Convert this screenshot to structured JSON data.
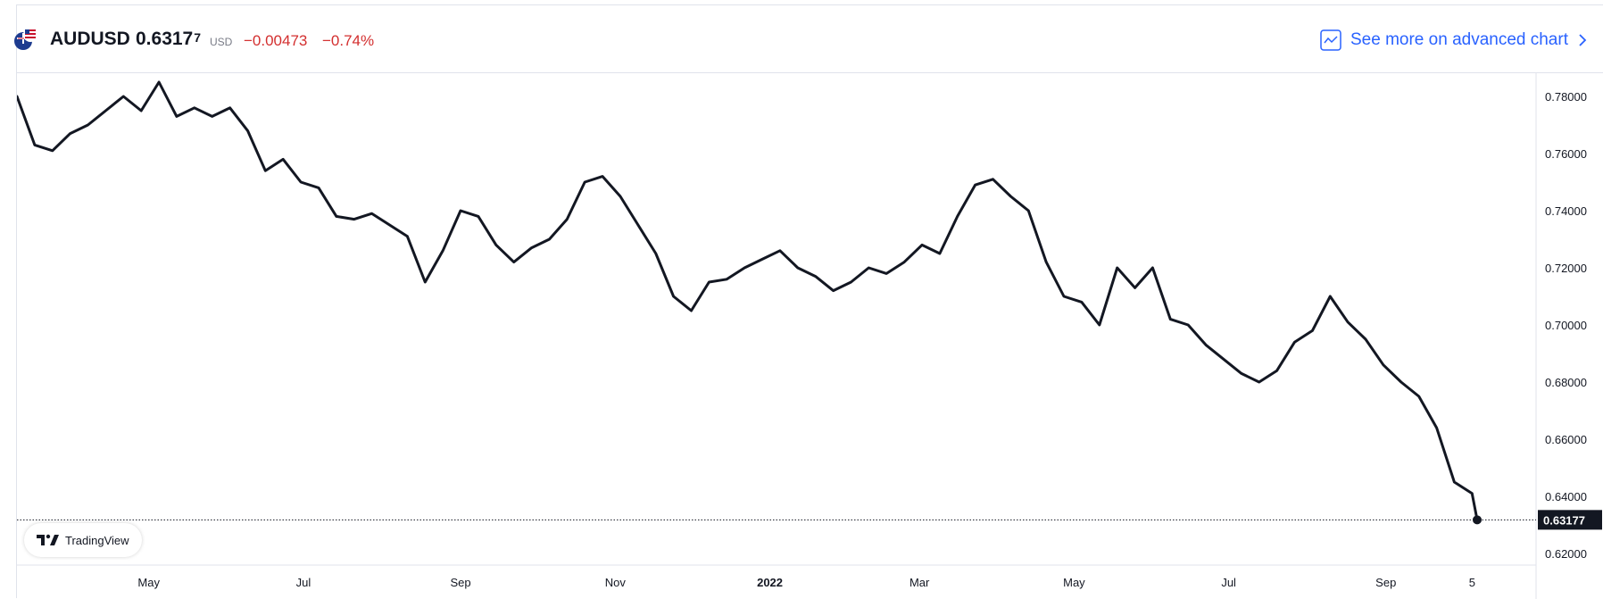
{
  "header": {
    "symbol": "AUDUSD",
    "price_main": "0.6317",
    "price_sup": "7",
    "currency": "USD",
    "change": "−0.00473",
    "change_pct": "−0.74%",
    "advanced_label": "See more on advanced chart"
  },
  "badge": {
    "label": "TradingView"
  },
  "colors": {
    "line": "#131722",
    "negative": "#d32f2f",
    "link": "#2962ff",
    "axis_text": "#131722"
  },
  "chart_data": {
    "type": "line",
    "title": "",
    "xlabel": "",
    "ylabel": "",
    "ylim": [
      0.62,
      0.79
    ],
    "grid": false,
    "y_ticks": [
      "0.62000",
      "0.64000",
      "0.66000",
      "0.68000",
      "0.70000",
      "0.72000",
      "0.74000",
      "0.76000",
      "0.78000"
    ],
    "x_ticks": [
      {
        "label": "May",
        "date": "2021-05-01"
      },
      {
        "label": "Jul",
        "date": "2021-07-01"
      },
      {
        "label": "Sep",
        "date": "2021-09-01"
      },
      {
        "label": "Nov",
        "date": "2021-11-01"
      },
      {
        "label": "2022",
        "date": "2022-01-01"
      },
      {
        "label": "Mar",
        "date": "2022-03-01"
      },
      {
        "label": "May",
        "date": "2022-05-01"
      },
      {
        "label": "Jul",
        "date": "2022-07-01"
      },
      {
        "label": "Sep",
        "date": "2022-09-01"
      },
      {
        "label": "5",
        "date": "2022-10-05"
      }
    ],
    "last_value": 0.63177,
    "last_value_label": "0.63177",
    "series": [
      {
        "name": "",
        "x": [
          "2021-03-10",
          "2021-03-17",
          "2021-03-24",
          "2021-03-31",
          "2021-04-07",
          "2021-04-14",
          "2021-04-21",
          "2021-04-28",
          "2021-05-05",
          "2021-05-12",
          "2021-05-19",
          "2021-05-26",
          "2021-06-02",
          "2021-06-09",
          "2021-06-16",
          "2021-06-23",
          "2021-06-30",
          "2021-07-07",
          "2021-07-14",
          "2021-07-21",
          "2021-07-28",
          "2021-08-04",
          "2021-08-11",
          "2021-08-18",
          "2021-08-25",
          "2021-09-01",
          "2021-09-08",
          "2021-09-15",
          "2021-09-22",
          "2021-09-29",
          "2021-10-06",
          "2021-10-13",
          "2021-10-20",
          "2021-10-27",
          "2021-11-03",
          "2021-11-10",
          "2021-11-17",
          "2021-11-24",
          "2021-12-01",
          "2021-12-08",
          "2021-12-15",
          "2021-12-22",
          "2021-12-29",
          "2022-01-05",
          "2022-01-12",
          "2022-01-19",
          "2022-01-26",
          "2022-02-02",
          "2022-02-09",
          "2022-02-16",
          "2022-02-23",
          "2022-03-02",
          "2022-03-09",
          "2022-03-16",
          "2022-03-23",
          "2022-03-30",
          "2022-04-06",
          "2022-04-13",
          "2022-04-20",
          "2022-04-27",
          "2022-05-04",
          "2022-05-11",
          "2022-05-18",
          "2022-05-25",
          "2022-06-01",
          "2022-06-08",
          "2022-06-15",
          "2022-06-22",
          "2022-06-29",
          "2022-07-06",
          "2022-07-13",
          "2022-07-20",
          "2022-07-27",
          "2022-08-03",
          "2022-08-10",
          "2022-08-17",
          "2022-08-24",
          "2022-08-31",
          "2022-09-07",
          "2022-09-14",
          "2022-09-21",
          "2022-09-28",
          "2022-10-05",
          "2022-10-07"
        ],
        "values": [
          0.78,
          0.763,
          0.761,
          0.767,
          0.77,
          0.775,
          0.78,
          0.775,
          0.785,
          0.773,
          0.776,
          0.773,
          0.776,
          0.768,
          0.754,
          0.758,
          0.75,
          0.748,
          0.738,
          0.737,
          0.739,
          0.735,
          0.731,
          0.715,
          0.726,
          0.74,
          0.738,
          0.728,
          0.722,
          0.727,
          0.73,
          0.737,
          0.75,
          0.752,
          0.745,
          0.735,
          0.725,
          0.71,
          0.705,
          0.715,
          0.716,
          0.72,
          0.723,
          0.726,
          0.72,
          0.717,
          0.712,
          0.715,
          0.72,
          0.718,
          0.722,
          0.728,
          0.725,
          0.738,
          0.749,
          0.751,
          0.745,
          0.74,
          0.722,
          0.71,
          0.708,
          0.7,
          0.72,
          0.713,
          0.72,
          0.702,
          0.7,
          0.693,
          0.688,
          0.683,
          0.68,
          0.684,
          0.694,
          0.698,
          0.71,
          0.701,
          0.695,
          0.686,
          0.68,
          0.675,
          0.664,
          0.645,
          0.641,
          0.63177
        ]
      }
    ]
  }
}
